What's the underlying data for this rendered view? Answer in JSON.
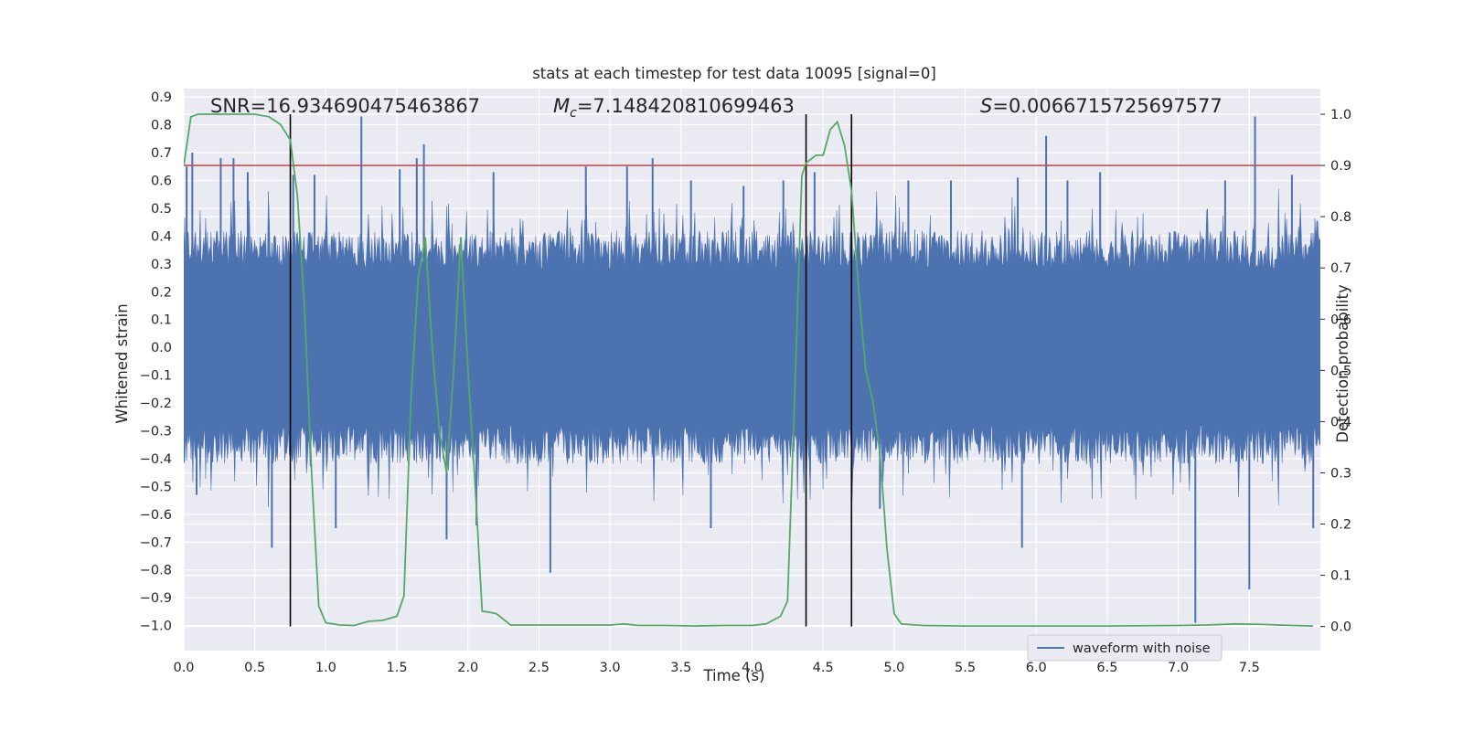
{
  "chart_data": {
    "type": "line",
    "title": "stats at each timestep for test data 10095 [signal=0]",
    "xlabel": "Time (s)",
    "ylabel": "Whitened strain",
    "ylabel_right": "Detection probability",
    "xlim": [
      0.0,
      8.0
    ],
    "ylim": [
      -1.09,
      0.93
    ],
    "ylim_right": [
      -0.047,
      1.05
    ],
    "x_ticks": [
      "0.0",
      "0.5",
      "1.0",
      "1.5",
      "2.0",
      "2.5",
      "3.0",
      "3.5",
      "4.0",
      "4.5",
      "5.0",
      "5.5",
      "6.0",
      "6.5",
      "7.0",
      "7.5"
    ],
    "y_ticks": [
      "0.9",
      "0.8",
      "0.7",
      "0.6",
      "0.5",
      "0.4",
      "0.3",
      "0.2",
      "0.1",
      "0.0",
      "−0.1",
      "−0.2",
      "−0.3",
      "−0.4",
      "−0.5",
      "−0.6",
      "−0.7",
      "−0.8",
      "−0.9",
      "−1.0"
    ],
    "y_ticks_right": [
      "1.0",
      "0.9",
      "0.8",
      "0.7",
      "0.6",
      "0.5",
      "0.4",
      "0.3",
      "0.2",
      "0.1",
      "0.0"
    ],
    "annotations": {
      "snr": "SNR=16.934690475463867",
      "mc_symbol": "M",
      "mc_sub": "c",
      "mc_value": "=7.148420810699463",
      "s_symbol": "S",
      "s_value": "=0.0066715725697577"
    },
    "legend": [
      {
        "label": "waveform with noise",
        "color": "#4c72b0"
      }
    ],
    "threshold_probability": 0.9,
    "vertical_lines_x": [
      0.75,
      4.38,
      4.7
    ],
    "series": [
      {
        "name": "waveform with noise",
        "axis": "left",
        "color": "#4c72b0",
        "note": "dense noise waveform, core band approx -0.3..0.3 with spikes; peak excursions listed",
        "spikes": [
          [
            0.02,
            0.65
          ],
          [
            0.06,
            0.7
          ],
          [
            0.09,
            -0.53
          ],
          [
            0.26,
            0.68
          ],
          [
            0.35,
            0.68
          ],
          [
            0.45,
            0.63
          ],
          [
            0.62,
            -0.72
          ],
          [
            0.77,
            0.62
          ],
          [
            0.92,
            0.62
          ],
          [
            1.07,
            -0.65
          ],
          [
            1.25,
            0.83
          ],
          [
            1.52,
            0.64
          ],
          [
            1.64,
            0.68
          ],
          [
            1.69,
            0.73
          ],
          [
            1.85,
            -0.69
          ],
          [
            2.06,
            -0.64
          ],
          [
            2.18,
            0.63
          ],
          [
            2.58,
            -0.81
          ],
          [
            2.83,
            0.65
          ],
          [
            3.12,
            0.65
          ],
          [
            3.3,
            0.68
          ],
          [
            3.57,
            0.6
          ],
          [
            3.71,
            -0.65
          ],
          [
            3.94,
            0.58
          ],
          [
            4.22,
            0.6
          ],
          [
            4.44,
            0.63
          ],
          [
            4.9,
            -0.58
          ],
          [
            5.1,
            0.6
          ],
          [
            5.4,
            0.6
          ],
          [
            5.87,
            0.61
          ],
          [
            5.9,
            -0.72
          ],
          [
            6.07,
            0.76
          ],
          [
            6.22,
            0.6
          ],
          [
            6.45,
            0.63
          ],
          [
            7.12,
            -0.99
          ],
          [
            7.33,
            0.6
          ],
          [
            7.5,
            -0.87
          ],
          [
            7.54,
            0.83
          ],
          [
            7.8,
            0.62
          ],
          [
            7.95,
            -0.65
          ]
        ]
      },
      {
        "name": "detection probability",
        "axis": "right",
        "color": "#55a868",
        "x": [
          0.0,
          0.05,
          0.1,
          0.2,
          0.3,
          0.4,
          0.5,
          0.6,
          0.68,
          0.75,
          0.8,
          0.85,
          0.9,
          0.95,
          1.0,
          1.1,
          1.2,
          1.3,
          1.4,
          1.5,
          1.55,
          1.6,
          1.65,
          1.7,
          1.75,
          1.8,
          1.85,
          1.9,
          1.95,
          2.0,
          2.05,
          2.1,
          2.15,
          2.2,
          2.3,
          2.5,
          2.7,
          2.9,
          3.0,
          3.1,
          3.2,
          3.4,
          3.6,
          3.8,
          4.0,
          4.1,
          4.2,
          4.25,
          4.3,
          4.35,
          4.38,
          4.45,
          4.5,
          4.55,
          4.6,
          4.65,
          4.7,
          4.75,
          4.8,
          4.85,
          4.9,
          4.95,
          5.0,
          5.05,
          5.2,
          5.5,
          6.0,
          6.5,
          7.0,
          7.2,
          7.4,
          7.6,
          7.8,
          7.95
        ],
        "values": [
          0.9,
          0.995,
          1.0,
          1.0,
          1.0,
          1.0,
          1.0,
          0.995,
          0.98,
          0.95,
          0.84,
          0.62,
          0.3,
          0.04,
          0.007,
          0.003,
          0.002,
          0.01,
          0.012,
          0.02,
          0.06,
          0.45,
          0.68,
          0.76,
          0.54,
          0.38,
          0.3,
          0.5,
          0.76,
          0.5,
          0.28,
          0.03,
          0.028,
          0.025,
          0.003,
          0.003,
          0.003,
          0.003,
          0.003,
          0.005,
          0.002,
          0.002,
          0.001,
          0.002,
          0.002,
          0.005,
          0.02,
          0.05,
          0.45,
          0.88,
          0.905,
          0.92,
          0.92,
          0.97,
          0.985,
          0.94,
          0.85,
          0.66,
          0.5,
          0.44,
          0.34,
          0.15,
          0.025,
          0.005,
          0.002,
          0.001,
          0.001,
          0.001,
          0.002,
          0.003,
          0.005,
          0.004,
          0.002,
          0.001
        ]
      }
    ]
  }
}
